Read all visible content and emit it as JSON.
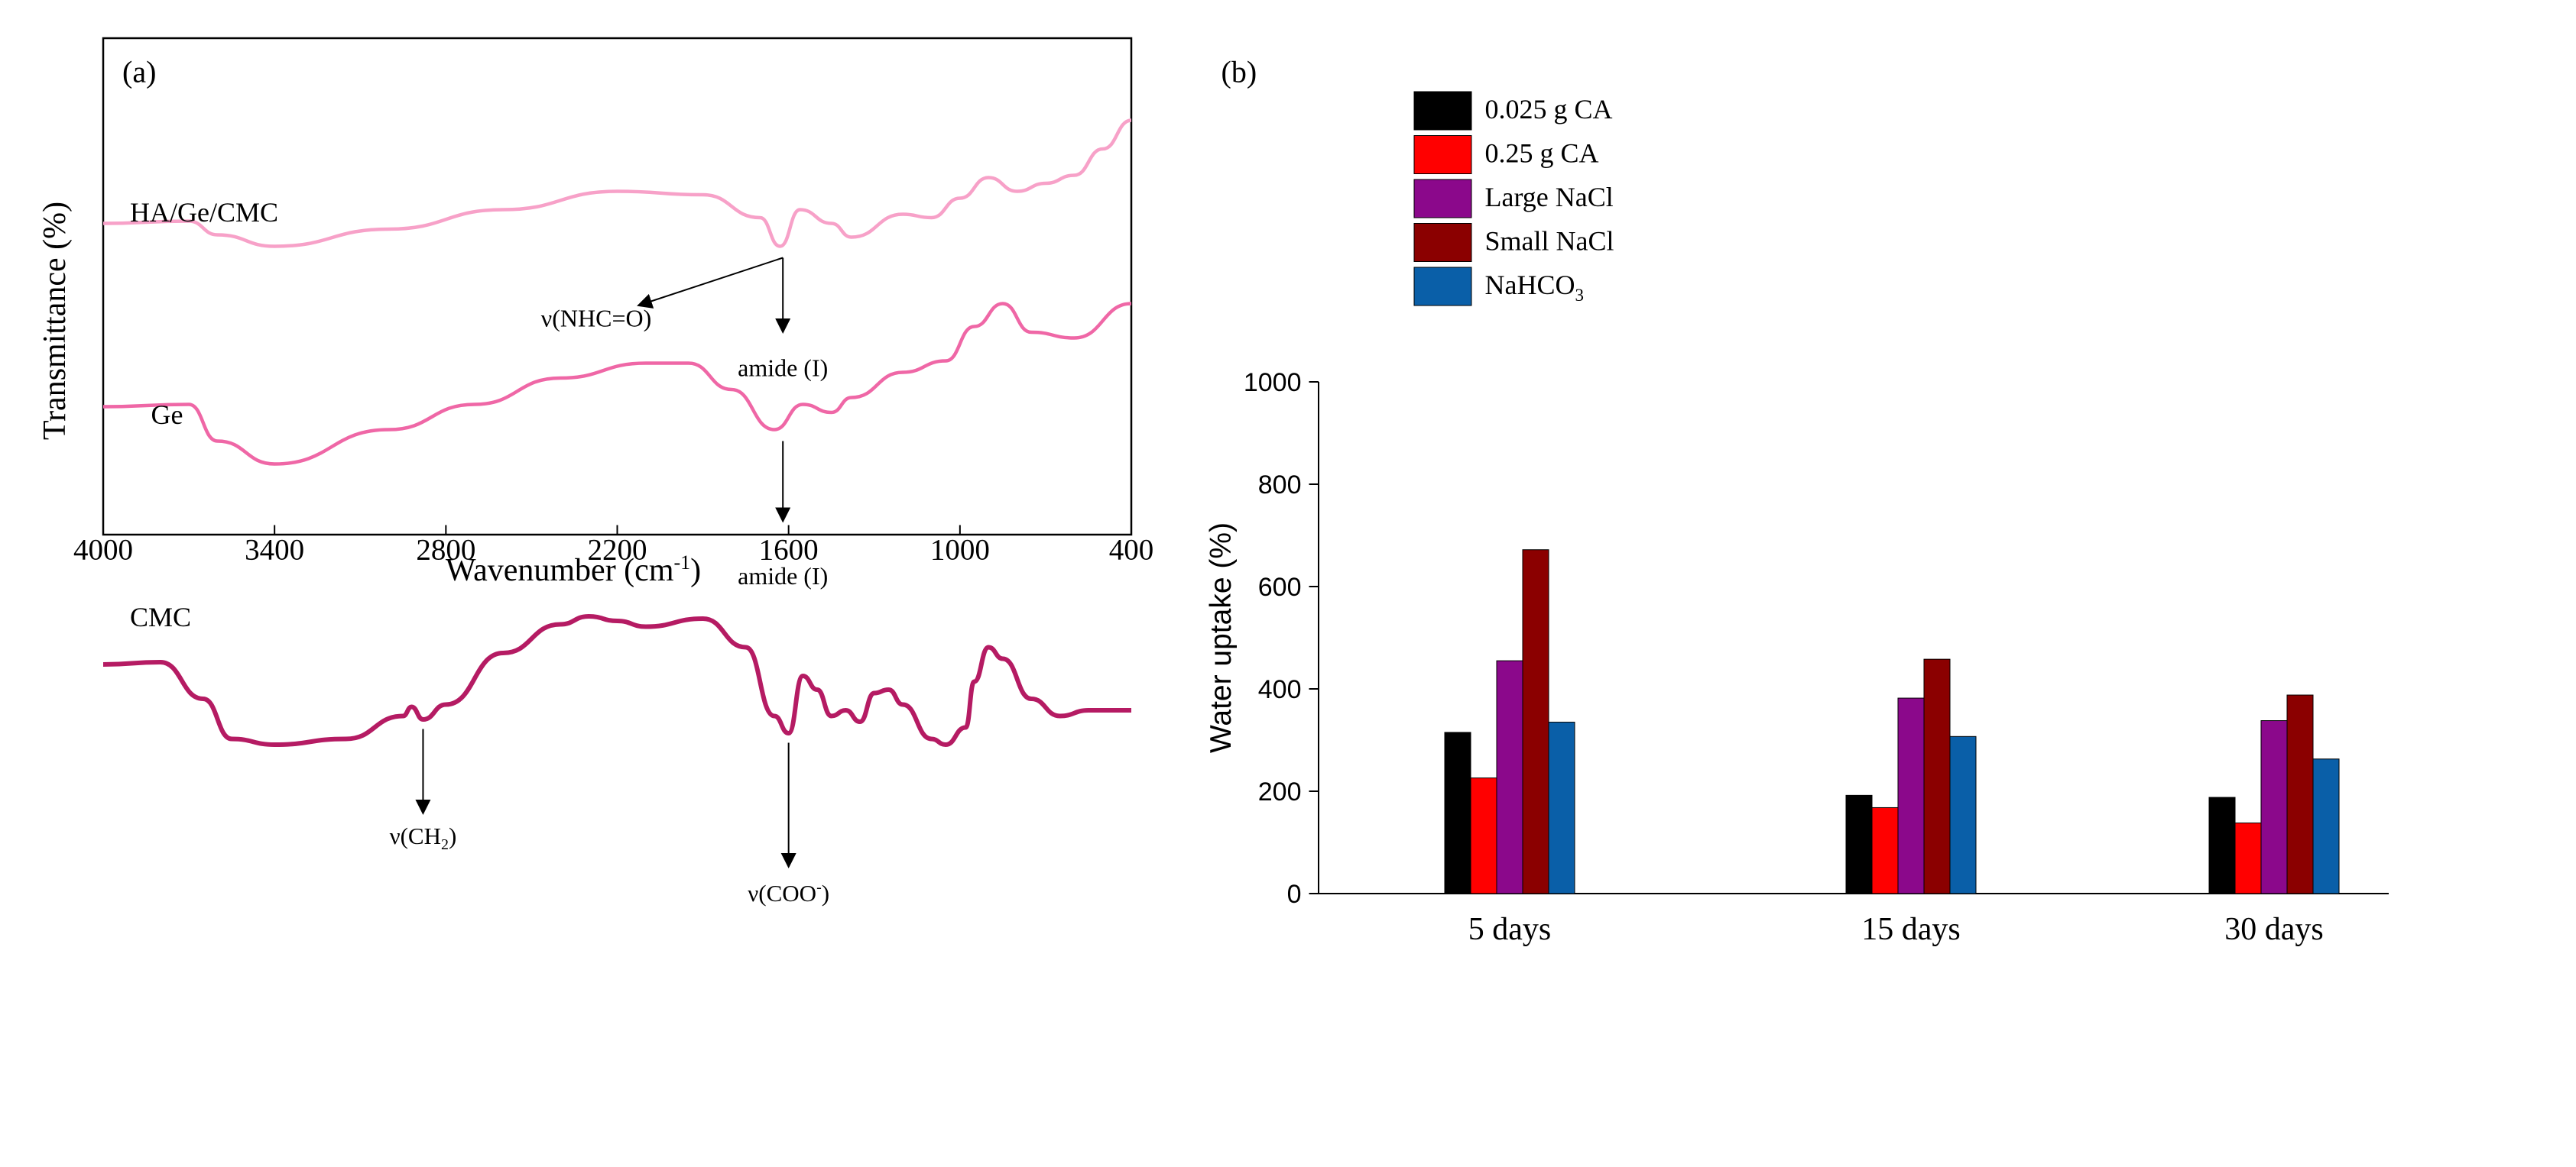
{
  "chart_data": [
    {
      "type": "line",
      "panel_label": "(a)",
      "xlabel": "Wavenumber (cm",
      "xlabel_sup": "-1",
      "xlabel_end": ")",
      "ylabel": "Transmittance (%)",
      "xlim": [
        4000,
        400
      ],
      "xticks": [
        "4000",
        "3400",
        "2800",
        "2200",
        "1600",
        "1000",
        "400"
      ],
      "xtick_values": [
        4000,
        3400,
        2800,
        2200,
        1600,
        1000,
        400
      ],
      "series": [
        {
          "name": "HA/Ge/CMC",
          "color": "#f7a1c8",
          "points": [
            [
              4000,
              0.5
            ],
            [
              3700,
              0.52
            ],
            [
              3600,
              0.4
            ],
            [
              3400,
              0.3
            ],
            [
              3000,
              0.45
            ],
            [
              2600,
              0.62
            ],
            [
              2200,
              0.78
            ],
            [
              1900,
              0.75
            ],
            [
              1700,
              0.55
            ],
            [
              1630,
              0.3
            ],
            [
              1560,
              0.62
            ],
            [
              1450,
              0.5
            ],
            [
              1380,
              0.38
            ],
            [
              1200,
              0.58
            ],
            [
              1100,
              0.55
            ],
            [
              1000,
              0.72
            ],
            [
              900,
              0.9
            ],
            [
              800,
              0.78
            ],
            [
              700,
              0.85
            ],
            [
              600,
              0.92
            ],
            [
              500,
              1.15
            ],
            [
              400,
              1.4
            ]
          ]
        },
        {
          "name": "Ge",
          "color": "#ef67a6",
          "points": [
            [
              4000,
              0.5
            ],
            [
              3700,
              0.52
            ],
            [
              3600,
              0.2
            ],
            [
              3400,
              0.0
            ],
            [
              3000,
              0.3
            ],
            [
              2700,
              0.52
            ],
            [
              2400,
              0.75
            ],
            [
              2100,
              0.88
            ],
            [
              1950,
              0.88
            ],
            [
              1800,
              0.65
            ],
            [
              1650,
              0.3
            ],
            [
              1550,
              0.52
            ],
            [
              1450,
              0.45
            ],
            [
              1380,
              0.58
            ],
            [
              1200,
              0.8
            ],
            [
              1050,
              0.9
            ],
            [
              950,
              1.2
            ],
            [
              850,
              1.4
            ],
            [
              750,
              1.15
            ],
            [
              600,
              1.1
            ],
            [
              400,
              1.4
            ]
          ]
        },
        {
          "name": "CMC",
          "color": "#b51b63",
          "points": [
            [
              4000,
              0.7
            ],
            [
              3800,
              0.72
            ],
            [
              3650,
              0.4
            ],
            [
              3550,
              0.05
            ],
            [
              3400,
              0.0
            ],
            [
              3150,
              0.05
            ],
            [
              2950,
              0.25
            ],
            [
              2920,
              0.33
            ],
            [
              2880,
              0.22
            ],
            [
              2800,
              0.35
            ],
            [
              2600,
              0.8
            ],
            [
              2400,
              1.05
            ],
            [
              2300,
              1.12
            ],
            [
              2200,
              1.08
            ],
            [
              2100,
              1.03
            ],
            [
              1900,
              1.1
            ],
            [
              1750,
              0.85
            ],
            [
              1650,
              0.25
            ],
            [
              1600,
              0.1
            ],
            [
              1550,
              0.6
            ],
            [
              1500,
              0.48
            ],
            [
              1450,
              0.25
            ],
            [
              1400,
              0.3
            ],
            [
              1350,
              0.2
            ],
            [
              1300,
              0.45
            ],
            [
              1250,
              0.48
            ],
            [
              1200,
              0.35
            ],
            [
              1100,
              0.05
            ],
            [
              1050,
              0.0
            ],
            [
              980,
              0.15
            ],
            [
              950,
              0.55
            ],
            [
              900,
              0.85
            ],
            [
              850,
              0.75
            ],
            [
              750,
              0.4
            ],
            [
              650,
              0.25
            ],
            [
              550,
              0.3
            ],
            [
              400,
              0.3
            ]
          ]
        }
      ],
      "annotations": [
        {
          "text": "ν(NHC=O)",
          "target": "HA/Ge/CMC"
        },
        {
          "text": "amide (I)",
          "target": "HA/Ge/CMC",
          "wavenumber": 1620
        },
        {
          "text": "amide (I)",
          "target": "Ge",
          "wavenumber": 1620
        },
        {
          "text_prefix": "ν(CH",
          "text_sub": "2",
          "text_suffix": ")",
          "target": "CMC",
          "wavenumber": 2880
        },
        {
          "text_prefix": "ν(COO",
          "text_sup": "-",
          "text_suffix": ")",
          "target": "CMC",
          "wavenumber": 1600
        }
      ]
    },
    {
      "type": "bar",
      "panel_label": "(b)",
      "xlabel": "",
      "ylabel": "Water uptake (%)",
      "ylim": [
        0,
        1000
      ],
      "yticks": [
        "0",
        "200",
        "400",
        "600",
        "800",
        "1000"
      ],
      "ytick_values": [
        0,
        200,
        400,
        600,
        800,
        1000
      ],
      "categories": [
        "5 days",
        "15 days",
        "30 days"
      ],
      "legend_position": "top-left",
      "series": [
        {
          "name": "0.025 g CA",
          "color": "#000000",
          "values": [
            315,
            192,
            188
          ]
        },
        {
          "name": "0.25 g CA",
          "color": "#ff0000",
          "values": [
            226,
            168,
            138
          ]
        },
        {
          "name": "Large NaCl",
          "color": "#8b088b",
          "values": [
            455,
            382,
            338
          ]
        },
        {
          "name": "Small NaCl",
          "color": "#8b0000",
          "values": [
            672,
            458,
            388
          ]
        },
        {
          "name": "NaHCO",
          "name_sub": "3",
          "color": "#0a5fa8",
          "values": [
            335,
            307,
            263
          ]
        }
      ]
    }
  ]
}
